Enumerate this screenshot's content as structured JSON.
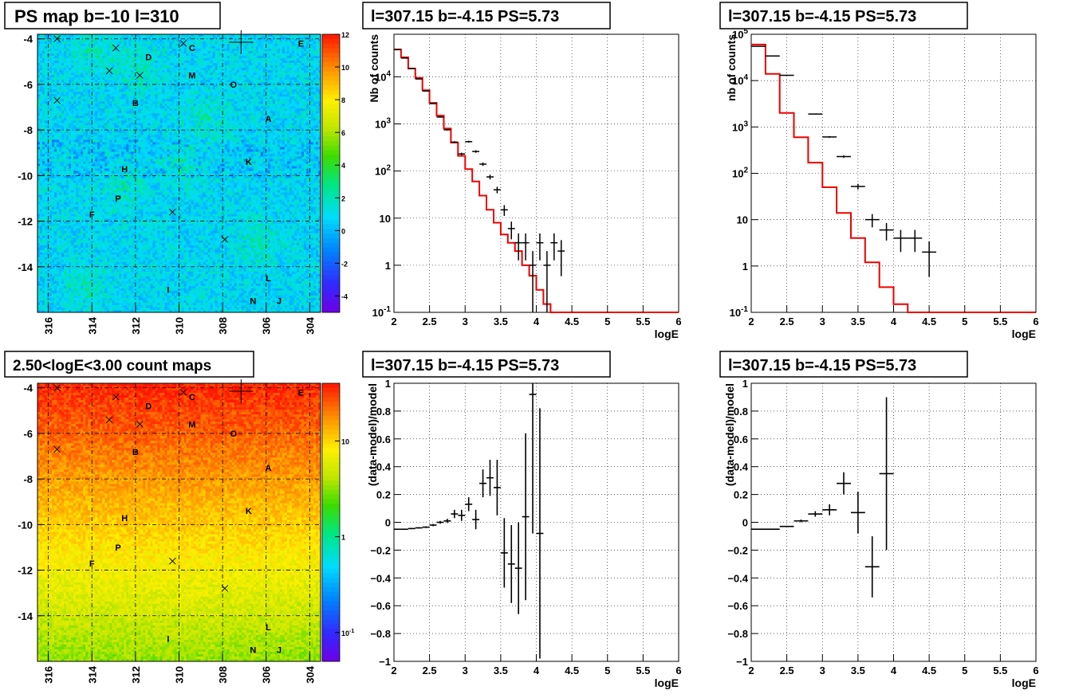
{
  "pads": [
    {
      "id": "psmap",
      "title": "PS map b=-10 l=310"
    },
    {
      "id": "spec1",
      "title": "l=307.15 b=-4.15 PS=5.73"
    },
    {
      "id": "spec2",
      "title": "l=307.15 b=-4.15 PS=5.73"
    },
    {
      "id": "cntmap",
      "title": "2.50<logE<3.00 count maps"
    },
    {
      "id": "res1",
      "title": "l=307.15 b=-4.15 PS=5.73"
    },
    {
      "id": "res2",
      "title": "l=307.15 b=-4.15 PS=5.73"
    }
  ],
  "chart_data": [
    {
      "id": "psmap",
      "type": "heatmap",
      "title": "PS map b=-10 l=310",
      "x": {
        "min": 303.5,
        "max": 316.5,
        "reversed": true,
        "ticks": [
          316,
          314,
          312,
          310,
          308,
          306,
          304
        ]
      },
      "y": {
        "min": -16,
        "max": -3.8,
        "ticks": [
          -4,
          -6,
          -8,
          -10,
          -12,
          -14
        ]
      },
      "colorbar": {
        "min": -5,
        "max": 12,
        "ticks": [
          "12",
          "10",
          "8",
          "6",
          "4",
          "2",
          "0",
          "-2",
          "-4"
        ],
        "tick_values": [
          12,
          10,
          8,
          6,
          4,
          2,
          0,
          -2,
          -4
        ]
      },
      "background_value": 0.8,
      "source_labels": [
        {
          "label": "D",
          "l": 311.4,
          "b": -4.8
        },
        {
          "label": "C",
          "l": 309.4,
          "b": -4.4
        },
        {
          "label": "E",
          "l": 304.4,
          "b": -4.2
        },
        {
          "label": "M",
          "l": 309.4,
          "b": -5.6
        },
        {
          "label": "O",
          "l": 307.5,
          "b": -6.0
        },
        {
          "label": "B",
          "l": 312.0,
          "b": -6.8
        },
        {
          "label": "A",
          "l": 305.9,
          "b": -7.5
        },
        {
          "label": "H",
          "l": 312.5,
          "b": -9.7
        },
        {
          "label": "K",
          "l": 306.8,
          "b": -9.4
        },
        {
          "label": "P",
          "l": 312.8,
          "b": -11.0
        },
        {
          "label": "F",
          "l": 314.0,
          "b": -11.7
        },
        {
          "label": "I",
          "l": 310.5,
          "b": -15.0
        },
        {
          "label": "L",
          "l": 305.9,
          "b": -14.5
        },
        {
          "label": "N",
          "l": 306.6,
          "b": -15.5
        },
        {
          "label": "J",
          "l": 305.4,
          "b": -15.5
        }
      ],
      "crosses": [
        {
          "l": 315.6,
          "b": -4.0
        },
        {
          "l": 312.9,
          "b": -4.4
        },
        {
          "l": 309.8,
          "b": -4.2
        },
        {
          "l": 313.2,
          "b": -5.4
        },
        {
          "l": 311.8,
          "b": -5.6
        },
        {
          "l": 315.6,
          "b": -6.7
        },
        {
          "l": 310.3,
          "b": -11.6
        },
        {
          "l": 307.9,
          "b": -12.8
        }
      ],
      "big_cross": {
        "l": 307.15,
        "b": -4.15
      }
    },
    {
      "id": "spec1",
      "type": "line",
      "title": "l=307.15 b=-4.15 PS=5.73",
      "xlabel": "logE",
      "ylabel": "Nb of counts",
      "xlim": [
        2,
        6
      ],
      "ylog": true,
      "ylim": [
        0.1,
        80000
      ],
      "x_ticks": [
        "2",
        "2.5",
        "3",
        "3.5",
        "4",
        "4.5",
        "5",
        "5.5",
        "6"
      ],
      "y_ticks": [
        {
          "v": 0.1,
          "label": "10^-1"
        },
        {
          "v": 1,
          "label": "1"
        },
        {
          "v": 10,
          "label": "10"
        },
        {
          "v": 100,
          "label": "10^2"
        },
        {
          "v": 1000,
          "label": "10^3"
        },
        {
          "v": 10000,
          "label": "10^4"
        }
      ],
      "model_step": {
        "bin_width": 0.1,
        "start": 2,
        "values": [
          38000,
          26000,
          15000,
          9500,
          5200,
          2800,
          1500,
          800,
          400,
          210,
          110,
          60,
          30,
          15,
          8,
          4.5,
          3,
          2,
          1,
          0.6,
          0.3,
          0.15,
          0.1,
          0.1,
          0.1,
          0.1,
          0.1,
          0.1,
          0.1,
          0.1,
          0.1,
          0.1,
          0.1,
          0.1,
          0.1,
          0.1,
          0.1,
          0.1,
          0.1,
          0.1
        ]
      },
      "data_points": [
        {
          "x": 2.05,
          "y": 38000,
          "xe": 0.05
        },
        {
          "x": 2.15,
          "y": 25000,
          "xe": 0.05
        },
        {
          "x": 2.25,
          "y": 15000,
          "xe": 0.05
        },
        {
          "x": 2.35,
          "y": 9000,
          "xe": 0.05
        },
        {
          "x": 2.45,
          "y": 5000,
          "xe": 0.05
        },
        {
          "x": 2.55,
          "y": 2700,
          "xe": 0.05
        },
        {
          "x": 2.65,
          "y": 1400,
          "xe": 0.05
        },
        {
          "x": 2.75,
          "y": 750,
          "xe": 0.05
        },
        {
          "x": 2.85,
          "y": 410,
          "xe": 0.05
        },
        {
          "x": 2.95,
          "y": 230,
          "xe": 0.05
        },
        {
          "x": 3.05,
          "y": 420,
          "xe": 0.05
        },
        {
          "x": 3.15,
          "y": 260,
          "xe": 0.05
        },
        {
          "x": 3.25,
          "y": 140,
          "xe": 0.05
        },
        {
          "x": 3.35,
          "y": 75,
          "xe": 0.05
        },
        {
          "x": 3.45,
          "y": 40,
          "xe": 0.05
        },
        {
          "x": 3.55,
          "y": 15,
          "xe": 0.05
        },
        {
          "x": 3.65,
          "y": 6,
          "xe": 0.05
        },
        {
          "x": 3.75,
          "y": 3,
          "xe": 0.05
        },
        {
          "x": 3.85,
          "y": 3,
          "xe": 0.05
        },
        {
          "x": 3.95,
          "y": 1,
          "xe": 0.05
        },
        {
          "x": 4.05,
          "y": 3,
          "xe": 0.05
        },
        {
          "x": 4.15,
          "y": 1,
          "xe": 0.05
        },
        {
          "x": 4.25,
          "y": 3,
          "xe": 0.05
        },
        {
          "x": 4.35,
          "y": 2,
          "xe": 0.05
        }
      ]
    },
    {
      "id": "spec2",
      "type": "line",
      "title": "l=307.15 b=-4.15 PS=5.73",
      "xlabel": "logE",
      "ylabel": "nb of counts",
      "xlim": [
        2,
        6
      ],
      "ylog": true,
      "ylim": [
        0.1,
        100000
      ],
      "x_ticks": [
        "2",
        "2.5",
        "3",
        "3.5",
        "4",
        "4.5",
        "5",
        "5.5",
        "6"
      ],
      "y_ticks": [
        {
          "v": 0.1,
          "label": "10^-1"
        },
        {
          "v": 1,
          "label": "1"
        },
        {
          "v": 10,
          "label": "10"
        },
        {
          "v": 100,
          "label": "10^2"
        },
        {
          "v": 1000,
          "label": "10^3"
        },
        {
          "v": 10000,
          "label": "10^4"
        },
        {
          "v": 100000,
          "label": "10^5"
        }
      ],
      "model_step": {
        "bin_width": 0.2,
        "start": 2,
        "values": [
          60000,
          14000,
          2000,
          600,
          170,
          50,
          14,
          4,
          1.2,
          0.35,
          0.15,
          0.1,
          0.1,
          0.1,
          0.1,
          0.1,
          0.1,
          0.1,
          0.1,
          0.1
        ]
      },
      "data_points": [
        {
          "x": 2.1,
          "y": 55000,
          "xe": 0.1
        },
        {
          "x": 2.3,
          "y": 34000,
          "xe": 0.1
        },
        {
          "x": 2.5,
          "y": 13000,
          "xe": 0.1
        },
        {
          "x": 2.9,
          "y": 1900,
          "xe": 0.1
        },
        {
          "x": 3.1,
          "y": 610,
          "xe": 0.1
        },
        {
          "x": 3.3,
          "y": 230,
          "xe": 0.1
        },
        {
          "x": 3.5,
          "y": 52,
          "xe": 0.1
        },
        {
          "x": 3.7,
          "y": 10,
          "xe": 0.1
        },
        {
          "x": 3.9,
          "y": 6,
          "xe": 0.1
        },
        {
          "x": 4.1,
          "y": 4,
          "xe": 0.1
        },
        {
          "x": 4.3,
          "y": 4,
          "xe": 0.1
        },
        {
          "x": 4.5,
          "y": 2,
          "xe": 0.1
        }
      ]
    },
    {
      "id": "cntmap",
      "type": "heatmap",
      "title": "2.50<logE<3.00 count maps",
      "x": {
        "min": 303.5,
        "max": 316.5,
        "reversed": true,
        "ticks": [
          316,
          314,
          312,
          310,
          308,
          306,
          304
        ]
      },
      "y": {
        "min": -16,
        "max": -3.8,
        "ticks": [
          -4,
          -6,
          -8,
          -10,
          -12,
          -14
        ]
      },
      "colorbar": {
        "log": true,
        "min": 0.05,
        "max": 40,
        "ticks": [
          "10",
          "1",
          "10^-1"
        ],
        "tick_values": [
          10,
          1,
          0.1
        ]
      },
      "source_labels": "same as psmap",
      "crosses": "same as psmap"
    },
    {
      "id": "res1",
      "type": "scatter",
      "title": "l=307.15 b=-4.15 PS=5.73",
      "xlabel": "logE",
      "ylabel": "(data-model)/model",
      "xlim": [
        2,
        6
      ],
      "ylim": [
        -1,
        1
      ],
      "x_ticks": [
        "2",
        "2.5",
        "3",
        "3.5",
        "4",
        "4.5",
        "5",
        "5.5",
        "6"
      ],
      "y_ticks": [
        "1",
        "0.8",
        "0.6",
        "0.4",
        "0.2",
        "0",
        "-0.2",
        "-0.4",
        "-0.6",
        "-0.8",
        "-1"
      ],
      "points": [
        {
          "x": 2.05,
          "y": -0.05,
          "xe": 0.05,
          "ye": 0.003
        },
        {
          "x": 2.15,
          "y": -0.05,
          "xe": 0.05,
          "ye": 0.003
        },
        {
          "x": 2.25,
          "y": -0.045,
          "xe": 0.05,
          "ye": 0.004
        },
        {
          "x": 2.35,
          "y": -0.04,
          "xe": 0.05,
          "ye": 0.005
        },
        {
          "x": 2.45,
          "y": -0.035,
          "xe": 0.05,
          "ye": 0.006
        },
        {
          "x": 2.55,
          "y": -0.02,
          "xe": 0.05,
          "ye": 0.008
        },
        {
          "x": 2.65,
          "y": 0.0,
          "xe": 0.05,
          "ye": 0.01
        },
        {
          "x": 2.75,
          "y": 0.01,
          "xe": 0.05,
          "ye": 0.015
        },
        {
          "x": 2.85,
          "y": 0.06,
          "xe": 0.05,
          "ye": 0.03
        },
        {
          "x": 2.95,
          "y": 0.05,
          "xe": 0.05,
          "ye": 0.04
        },
        {
          "x": 3.05,
          "y": 0.13,
          "xe": 0.05,
          "ye": 0.05
        },
        {
          "x": 3.15,
          "y": 0.02,
          "xe": 0.05,
          "ye": 0.07
        },
        {
          "x": 3.25,
          "y": 0.28,
          "xe": 0.05,
          "ye": 0.1
        },
        {
          "x": 3.35,
          "y": 0.32,
          "xe": 0.05,
          "ye": 0.13
        },
        {
          "x": 3.45,
          "y": 0.25,
          "xe": 0.05,
          "ye": 0.2
        },
        {
          "x": 3.55,
          "y": -0.22,
          "xe": 0.05,
          "ye": 0.25
        },
        {
          "x": 3.65,
          "y": -0.3,
          "xe": 0.05,
          "ye": 0.28
        },
        {
          "x": 3.75,
          "y": -0.33,
          "xe": 0.05,
          "ye": 0.33
        },
        {
          "x": 3.85,
          "y": 0.04,
          "xe": 0.05,
          "ye": 0.6
        },
        {
          "x": 3.95,
          "y": 0.92,
          "xe": 0.05,
          "ye": 1.0
        },
        {
          "x": 4.05,
          "y": -0.08,
          "xe": 0.05,
          "ye": 0.9
        }
      ]
    },
    {
      "id": "res2",
      "type": "scatter",
      "title": "l=307.15 b=-4.15 PS=5.73",
      "xlabel": "logE",
      "ylabel": "(data-model)/model",
      "xlim": [
        2,
        6
      ],
      "ylim": [
        -1,
        1
      ],
      "x_ticks": [
        "2",
        "2.5",
        "3",
        "3.5",
        "4",
        "4.5",
        "5",
        "5.5",
        "6"
      ],
      "y_ticks": [
        "1",
        "0.8",
        "0.6",
        "0.4",
        "0.2",
        "0",
        "-0.2",
        "-0.4",
        "-0.6",
        "-0.8",
        "-1"
      ],
      "points": [
        {
          "x": 2.2,
          "y": -0.05,
          "xe": 0.2,
          "ye": 0.003
        },
        {
          "x": 2.5,
          "y": -0.03,
          "xe": 0.1,
          "ye": 0.004
        },
        {
          "x": 2.7,
          "y": 0.01,
          "xe": 0.1,
          "ye": 0.01
        },
        {
          "x": 2.9,
          "y": 0.06,
          "xe": 0.1,
          "ye": 0.02
        },
        {
          "x": 3.1,
          "y": 0.09,
          "xe": 0.1,
          "ye": 0.04
        },
        {
          "x": 3.3,
          "y": 0.28,
          "xe": 0.1,
          "ye": 0.08
        },
        {
          "x": 3.5,
          "y": 0.07,
          "xe": 0.1,
          "ye": 0.15
        },
        {
          "x": 3.7,
          "y": -0.32,
          "xe": 0.1,
          "ye": 0.22
        },
        {
          "x": 3.9,
          "y": 0.35,
          "xe": 0.1,
          "ye": 0.55
        }
      ]
    }
  ]
}
